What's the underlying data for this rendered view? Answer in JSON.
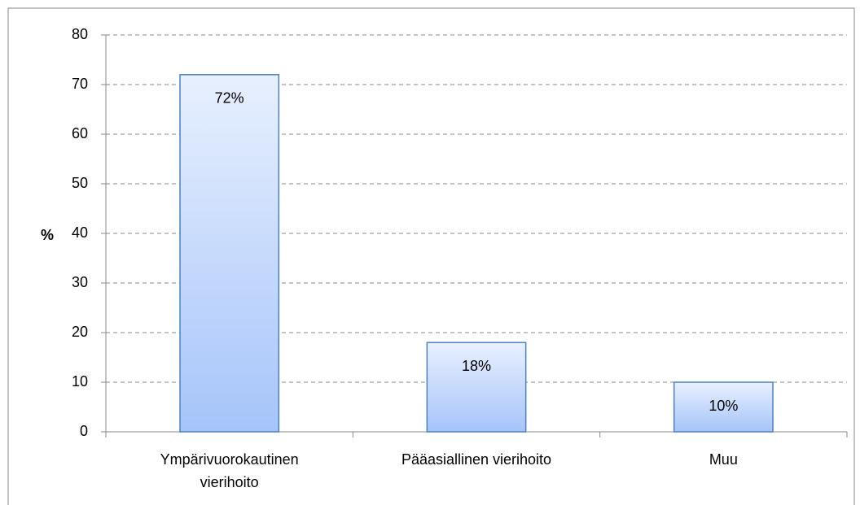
{
  "chart_data": {
    "type": "bar",
    "y_axis_label": "%",
    "categories": [
      "Ympärivuorokautinen vierihoito",
      "Pääasiallinen vierihoito",
      "Muu"
    ],
    "values": [
      72,
      18,
      10
    ],
    "value_labels": [
      "72%",
      "18%",
      "10%"
    ],
    "color": "#a6c4fa",
    "ylim": [
      0,
      80
    ],
    "yticks": [
      0,
      10,
      20,
      30,
      40,
      50,
      60,
      70,
      80
    ],
    "grid": true
  }
}
